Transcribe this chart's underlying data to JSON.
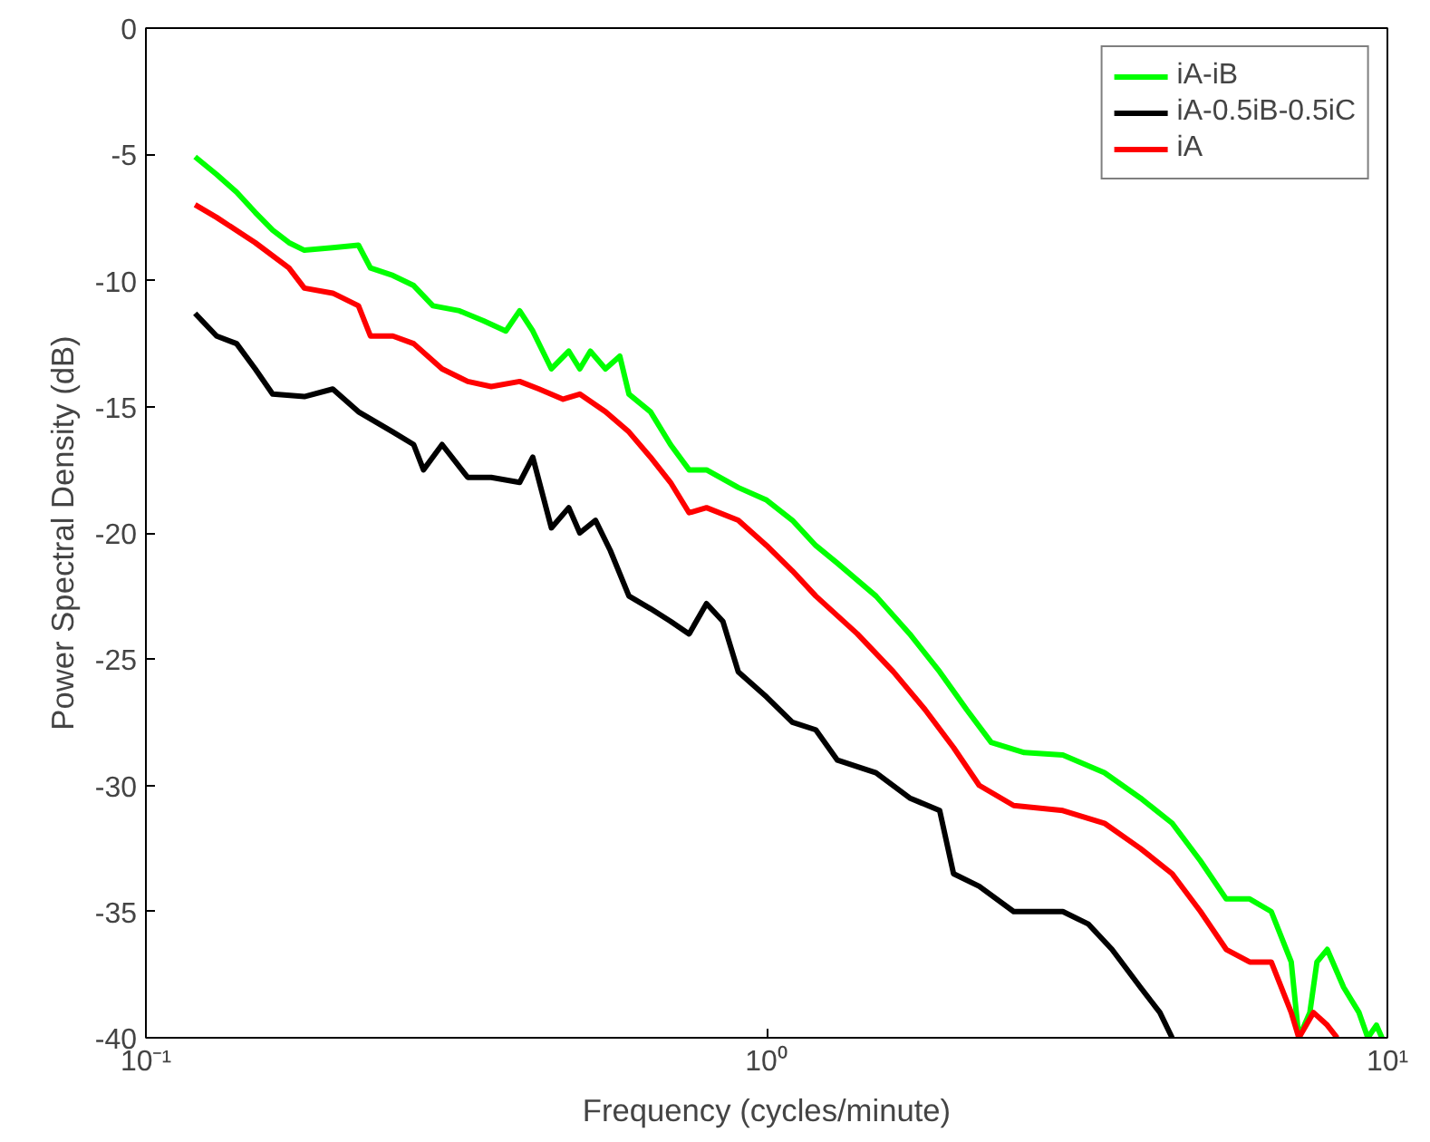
{
  "chart_data": {
    "type": "line",
    "xlabel": "Frequency (cycles/minute)",
    "ylabel": "Power Spectral Density (dB)",
    "log": "x",
    "xlim": [
      0.1,
      10
    ],
    "ylim": [
      -40,
      0
    ],
    "xticks": [
      {
        "value": 0.1,
        "label": "10⁻¹"
      },
      {
        "value": 1,
        "label": "10⁰"
      },
      {
        "value": 10,
        "label": "10¹"
      }
    ],
    "yticks": [
      -40,
      -35,
      -30,
      -25,
      -20,
      -15,
      -10,
      -5,
      0
    ],
    "grid": false,
    "legend": "top right",
    "line_style": "solid",
    "marker": "none",
    "series": [
      {
        "name": "iA-iB",
        "color": "#00ff00",
        "x": [
          0.12,
          0.13,
          0.14,
          0.15,
          0.16,
          0.17,
          0.18,
          0.2,
          0.22,
          0.23,
          0.25,
          0.27,
          0.29,
          0.32,
          0.35,
          0.38,
          0.4,
          0.42,
          0.45,
          0.48,
          0.5,
          0.52,
          0.55,
          0.58,
          0.6,
          0.65,
          0.7,
          0.75,
          0.8,
          0.9,
          1.0,
          1.1,
          1.2,
          1.3,
          1.5,
          1.7,
          1.9,
          2.1,
          2.3,
          2.6,
          3.0,
          3.5,
          4.0,
          4.5,
          5.0,
          5.5,
          6.0,
          6.5,
          7.0,
          7.2,
          7.5,
          7.7,
          8.0,
          8.5,
          9.0,
          9.3,
          9.6,
          9.8
        ],
        "values": [
          -5.1,
          -5.8,
          -6.5,
          -7.3,
          -8.0,
          -8.5,
          -8.8,
          -8.7,
          -8.6,
          -9.5,
          -9.8,
          -10.2,
          -11,
          -11.2,
          -11.6,
          -12,
          -11.2,
          -12,
          -13.5,
          -12.8,
          -13.5,
          -12.8,
          -13.5,
          -13,
          -14.5,
          -15.2,
          -16.5,
          -17.5,
          -17.5,
          -18.2,
          -18.7,
          -19.5,
          -20.5,
          -21.2,
          -22.5,
          -24,
          -25.5,
          -27,
          -28.3,
          -28.7,
          -28.8,
          -29.5,
          -30.5,
          -31.5,
          -33,
          -34.5,
          -34.5,
          -35,
          -37,
          -40,
          -39,
          -37,
          -36.5,
          -38,
          -39,
          -40,
          -39.5,
          -40
        ]
      },
      {
        "name": "iA-0.5iB-0.5iC",
        "color": "#000000",
        "x": [
          0.12,
          0.13,
          0.14,
          0.15,
          0.16,
          0.18,
          0.2,
          0.22,
          0.25,
          0.27,
          0.28,
          0.3,
          0.33,
          0.36,
          0.4,
          0.42,
          0.45,
          0.48,
          0.5,
          0.53,
          0.56,
          0.6,
          0.65,
          0.7,
          0.75,
          0.8,
          0.85,
          0.9,
          1.0,
          1.1,
          1.2,
          1.3,
          1.5,
          1.7,
          1.9,
          2.0,
          2.2,
          2.5,
          3.0,
          3.3,
          3.6,
          4.0,
          4.3,
          4.5
        ],
        "values": [
          -11.3,
          -12.2,
          -12.5,
          -13.5,
          -14.5,
          -14.6,
          -14.3,
          -15.2,
          -16,
          -16.5,
          -17.5,
          -16.5,
          -17.8,
          -17.8,
          -18,
          -17,
          -19.8,
          -19,
          -20,
          -19.5,
          -20.7,
          -22.5,
          -23,
          -23.5,
          -24,
          -22.8,
          -23.5,
          -25.5,
          -26.5,
          -27.5,
          -27.8,
          -29,
          -29.5,
          -30.5,
          -31,
          -33.5,
          -34,
          -35,
          -35,
          -35.5,
          -36.5,
          -38,
          -39,
          -40
        ]
      },
      {
        "name": "iA",
        "color": "#ff0000",
        "x": [
          0.12,
          0.13,
          0.15,
          0.17,
          0.18,
          0.2,
          0.22,
          0.23,
          0.25,
          0.27,
          0.3,
          0.33,
          0.36,
          0.4,
          0.43,
          0.47,
          0.5,
          0.55,
          0.6,
          0.65,
          0.7,
          0.75,
          0.8,
          0.9,
          1.0,
          1.1,
          1.2,
          1.4,
          1.6,
          1.8,
          2.0,
          2.2,
          2.5,
          3.0,
          3.5,
          4.0,
          4.5,
          5.0,
          5.5,
          6.0,
          6.5,
          7.0,
          7.2,
          7.6,
          8.0,
          8.3
        ],
        "values": [
          -7,
          -7.5,
          -8.5,
          -9.5,
          -10.3,
          -10.5,
          -11,
          -12.2,
          -12.2,
          -12.5,
          -13.5,
          -14,
          -14.2,
          -14,
          -14.3,
          -14.7,
          -14.5,
          -15.2,
          -16,
          -17,
          -18,
          -19.2,
          -19,
          -19.5,
          -20.5,
          -21.5,
          -22.5,
          -24,
          -25.5,
          -27,
          -28.5,
          -30,
          -30.8,
          -31,
          -31.5,
          -32.5,
          -33.5,
          -35,
          -36.5,
          -37,
          -37,
          -39,
          -40,
          -39,
          -39.5,
          -40
        ]
      }
    ]
  }
}
